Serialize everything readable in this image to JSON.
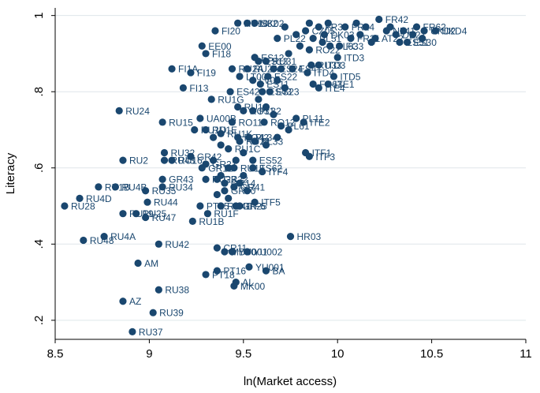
{
  "chart_data": {
    "type": "scatter",
    "xlabel": "ln(Market access)",
    "ylabel": "Literacy",
    "xlim": [
      8.5,
      11
    ],
    "ylim": [
      0.15,
      1.02
    ],
    "x_ticks": [
      8.5,
      9,
      9.5,
      10,
      10.5,
      11
    ],
    "x_tick_labels": [
      "8.5",
      "9",
      "9.5",
      "10",
      "10.5",
      "11"
    ],
    "y_ticks": [
      0.2,
      0.4,
      0.6,
      0.8,
      1.0
    ],
    "y_tick_labels": [
      ".2",
      ".4",
      ".6",
      ".8",
      "1"
    ],
    "grid": true,
    "marker_color": "#1a476f",
    "points": [
      {
        "x": 10.22,
        "y": 0.99,
        "label": "FR42"
      },
      {
        "x": 10.46,
        "y": 0.96,
        "label": "UKD2"
      },
      {
        "x": 10.52,
        "y": 0.96,
        "label": "UKD4"
      },
      {
        "x": 10.37,
        "y": 0.93,
        "label": "ES30"
      },
      {
        "x": 10.42,
        "y": 0.97,
        "label": "FR62"
      },
      {
        "x": 10.04,
        "y": 0.97,
        "label": "FR24"
      },
      {
        "x": 10.07,
        "y": 0.94,
        "label": "FR21"
      },
      {
        "x": 9.96,
        "y": 0.92,
        "label": "PL63"
      },
      {
        "x": 10.01,
        "y": 0.92,
        "label": "FC3"
      },
      {
        "x": 10.2,
        "y": 0.94,
        "label": "AT22"
      },
      {
        "x": 10.31,
        "y": 0.95,
        "label": "DE21"
      },
      {
        "x": 10.33,
        "y": 0.93,
        "label": "ES51"
      },
      {
        "x": 10.26,
        "y": 0.96,
        "label": "NL41"
      },
      {
        "x": 9.9,
        "y": 0.97,
        "label": "FR30"
      },
      {
        "x": 9.87,
        "y": 0.94,
        "label": "PL51"
      },
      {
        "x": 9.83,
        "y": 0.96,
        "label": "CZ05"
      },
      {
        "x": 9.93,
        "y": 0.95,
        "label": "DK03"
      },
      {
        "x": 9.47,
        "y": 0.98,
        "label": "HU10"
      },
      {
        "x": 9.56,
        "y": 0.98,
        "label": "SK02"
      },
      {
        "x": 9.52,
        "y": 0.98,
        "label": "HU32"
      },
      {
        "x": 9.68,
        "y": 0.94,
        "label": "PL22"
      },
      {
        "x": 9.85,
        "y": 0.91,
        "label": "RO22"
      },
      {
        "x": 9.9,
        "y": 0.87,
        "label": "ITD3"
      },
      {
        "x": 9.86,
        "y": 0.87,
        "label": "RU33"
      },
      {
        "x": 9.84,
        "y": 0.85,
        "label": "ITD4"
      },
      {
        "x": 9.76,
        "y": 0.86,
        "label": "ES41"
      },
      {
        "x": 10.0,
        "y": 0.89,
        "label": "ITD3"
      },
      {
        "x": 9.98,
        "y": 0.84,
        "label": "ITD5"
      },
      {
        "x": 9.95,
        "y": 0.82,
        "label": "ITE1"
      },
      {
        "x": 9.87,
        "y": 0.82,
        "label": "FR63"
      },
      {
        "x": 9.9,
        "y": 0.81,
        "label": "ITE4"
      },
      {
        "x": 9.56,
        "y": 0.89,
        "label": "ES12"
      },
      {
        "x": 9.58,
        "y": 0.88,
        "label": "ES13"
      },
      {
        "x": 9.62,
        "y": 0.88,
        "label": "RU31"
      },
      {
        "x": 9.66,
        "y": 0.86,
        "label": "ES24"
      },
      {
        "x": 9.63,
        "y": 0.84,
        "label": "ES22"
      },
      {
        "x": 9.55,
        "y": 0.83,
        "label": "LV00"
      },
      {
        "x": 9.59,
        "y": 0.82,
        "label": "ES11"
      },
      {
        "x": 9.6,
        "y": 0.8,
        "label": "ES43"
      },
      {
        "x": 9.64,
        "y": 0.8,
        "label": "ES23"
      },
      {
        "x": 9.52,
        "y": 0.86,
        "label": "RU2A"
      },
      {
        "x": 9.44,
        "y": 0.86,
        "label": "RU2A"
      },
      {
        "x": 9.48,
        "y": 0.84,
        "label": "LT00"
      },
      {
        "x": 9.35,
        "y": 0.96,
        "label": "FI20"
      },
      {
        "x": 9.28,
        "y": 0.92,
        "label": "EE00"
      },
      {
        "x": 9.3,
        "y": 0.9,
        "label": "FI18"
      },
      {
        "x": 9.12,
        "y": 0.86,
        "label": "FI1A"
      },
      {
        "x": 9.22,
        "y": 0.85,
        "label": "FI19"
      },
      {
        "x": 9.18,
        "y": 0.81,
        "label": "FI13"
      },
      {
        "x": 9.43,
        "y": 0.8,
        "label": "ES42"
      },
      {
        "x": 9.33,
        "y": 0.78,
        "label": "RU1G"
      },
      {
        "x": 9.47,
        "y": 0.76,
        "label": "RU1A"
      },
      {
        "x": 9.5,
        "y": 0.75,
        "label": "RO31"
      },
      {
        "x": 9.55,
        "y": 0.75,
        "label": "PL32"
      },
      {
        "x": 9.27,
        "y": 0.73,
        "label": "UA00B"
      },
      {
        "x": 9.07,
        "y": 0.72,
        "label": "RU15"
      },
      {
        "x": 9.44,
        "y": 0.72,
        "label": "RO11"
      },
      {
        "x": 9.61,
        "y": 0.72,
        "label": "RO12"
      },
      {
        "x": 9.78,
        "y": 0.73,
        "label": "PL11"
      },
      {
        "x": 9.82,
        "y": 0.72,
        "label": "ITE2"
      },
      {
        "x": 9.7,
        "y": 0.71,
        "label": "PL61"
      },
      {
        "x": 9.3,
        "y": 0.7,
        "label": "RU1E"
      },
      {
        "x": 9.24,
        "y": 0.7,
        "label": "RU1D"
      },
      {
        "x": 9.38,
        "y": 0.69,
        "label": "RU1K"
      },
      {
        "x": 9.47,
        "y": 0.68,
        "label": "RO42"
      },
      {
        "x": 9.53,
        "y": 0.68,
        "label": "PL34"
      },
      {
        "x": 9.48,
        "y": 0.67,
        "label": "RU21"
      },
      {
        "x": 9.56,
        "y": 0.67,
        "label": "PL33"
      },
      {
        "x": 9.42,
        "y": 0.65,
        "label": "RU1C"
      },
      {
        "x": 9.83,
        "y": 0.64,
        "label": "ITF1"
      },
      {
        "x": 9.85,
        "y": 0.63,
        "label": "ITF3"
      },
      {
        "x": 8.84,
        "y": 0.75,
        "label": "RU24"
      },
      {
        "x": 9.08,
        "y": 0.64,
        "label": "RU32"
      },
      {
        "x": 9.22,
        "y": 0.63,
        "label": "GR42"
      },
      {
        "x": 8.86,
        "y": 0.62,
        "label": "RU2"
      },
      {
        "x": 9.08,
        "y": 0.62,
        "label": "RU43"
      },
      {
        "x": 9.12,
        "y": 0.62,
        "label": "RU16"
      },
      {
        "x": 9.3,
        "y": 0.61,
        "label": "GR21"
      },
      {
        "x": 9.45,
        "y": 0.6,
        "label": "RU1J"
      },
      {
        "x": 9.55,
        "y": 0.62,
        "label": "ES52"
      },
      {
        "x": 9.55,
        "y": 0.6,
        "label": "ES62"
      },
      {
        "x": 9.6,
        "y": 0.59,
        "label": "ITF4"
      },
      {
        "x": 9.28,
        "y": 0.6,
        "label": "GR12"
      },
      {
        "x": 9.3,
        "y": 0.57,
        "label": "RU23"
      },
      {
        "x": 9.07,
        "y": 0.57,
        "label": "GR43"
      },
      {
        "x": 9.07,
        "y": 0.55,
        "label": "RU34"
      },
      {
        "x": 9.36,
        "y": 0.57,
        "label": "GR22"
      },
      {
        "x": 9.4,
        "y": 0.56,
        "label": "GR14"
      },
      {
        "x": 9.45,
        "y": 0.55,
        "label": "GR41"
      },
      {
        "x": 9.4,
        "y": 0.54,
        "label": "GR30"
      },
      {
        "x": 8.98,
        "y": 0.54,
        "label": "RU35"
      },
      {
        "x": 8.73,
        "y": 0.55,
        "label": "RU1B"
      },
      {
        "x": 8.82,
        "y": 0.55,
        "label": "RU4B"
      },
      {
        "x": 8.63,
        "y": 0.52,
        "label": "RU4D"
      },
      {
        "x": 8.55,
        "y": 0.5,
        "label": "RU28"
      },
      {
        "x": 8.99,
        "y": 0.51,
        "label": "RU44"
      },
      {
        "x": 9.27,
        "y": 0.5,
        "label": "PT15"
      },
      {
        "x": 9.38,
        "y": 0.5,
        "label": "RU41"
      },
      {
        "x": 9.46,
        "y": 0.5,
        "label": "GR25"
      },
      {
        "x": 9.56,
        "y": 0.51,
        "label": "ITF5"
      },
      {
        "x": 9.48,
        "y": 0.5,
        "label": "ITF6"
      },
      {
        "x": 8.86,
        "y": 0.48,
        "label": "RU19"
      },
      {
        "x": 8.93,
        "y": 0.48,
        "label": "RU25"
      },
      {
        "x": 8.98,
        "y": 0.47,
        "label": "RU47"
      },
      {
        "x": 9.31,
        "y": 0.48,
        "label": "RU1F"
      },
      {
        "x": 9.23,
        "y": 0.46,
        "label": "RU1B"
      },
      {
        "x": 8.76,
        "y": 0.42,
        "label": "RU4A"
      },
      {
        "x": 8.65,
        "y": 0.41,
        "label": "RU48"
      },
      {
        "x": 9.75,
        "y": 0.42,
        "label": "HR03"
      },
      {
        "x": 9.05,
        "y": 0.4,
        "label": "RU42"
      },
      {
        "x": 9.36,
        "y": 0.39,
        "label": "CR11"
      },
      {
        "x": 9.4,
        "y": 0.38,
        "label": "MD00"
      },
      {
        "x": 9.44,
        "y": 0.38,
        "label": "YU001"
      },
      {
        "x": 9.52,
        "y": 0.38,
        "label": "YU002"
      },
      {
        "x": 8.94,
        "y": 0.35,
        "label": "AM"
      },
      {
        "x": 9.53,
        "y": 0.34,
        "label": "YU001"
      },
      {
        "x": 9.36,
        "y": 0.33,
        "label": "PT16"
      },
      {
        "x": 9.3,
        "y": 0.32,
        "label": "PT18"
      },
      {
        "x": 9.62,
        "y": 0.33,
        "label": "BA"
      },
      {
        "x": 9.46,
        "y": 0.3,
        "label": "AL"
      },
      {
        "x": 9.45,
        "y": 0.29,
        "label": "MK00"
      },
      {
        "x": 9.05,
        "y": 0.28,
        "label": "RU38"
      },
      {
        "x": 8.86,
        "y": 0.25,
        "label": "AZ"
      },
      {
        "x": 9.02,
        "y": 0.22,
        "label": "RU39"
      },
      {
        "x": 8.91,
        "y": 0.17,
        "label": "RU37"
      },
      {
        "x": 9.85,
        "y": 0.98,
        "label": ""
      },
      {
        "x": 9.95,
        "y": 0.98,
        "label": ""
      },
      {
        "x": 10.1,
        "y": 0.98,
        "label": ""
      },
      {
        "x": 10.15,
        "y": 0.97,
        "label": ""
      },
      {
        "x": 10.28,
        "y": 0.97,
        "label": ""
      },
      {
        "x": 10.35,
        "y": 0.96,
        "label": ""
      },
      {
        "x": 10.4,
        "y": 0.95,
        "label": ""
      },
      {
        "x": 10.45,
        "y": 0.94,
        "label": ""
      },
      {
        "x": 10.12,
        "y": 0.95,
        "label": ""
      },
      {
        "x": 10.18,
        "y": 0.93,
        "label": ""
      },
      {
        "x": 9.92,
        "y": 0.93,
        "label": ""
      },
      {
        "x": 9.78,
        "y": 0.95,
        "label": ""
      },
      {
        "x": 9.72,
        "y": 0.97,
        "label": ""
      },
      {
        "x": 9.8,
        "y": 0.92,
        "label": ""
      },
      {
        "x": 9.74,
        "y": 0.9,
        "label": ""
      },
      {
        "x": 9.7,
        "y": 0.86,
        "label": ""
      },
      {
        "x": 9.68,
        "y": 0.83,
        "label": ""
      },
      {
        "x": 9.72,
        "y": 0.81,
        "label": ""
      },
      {
        "x": 9.58,
        "y": 0.78,
        "label": ""
      },
      {
        "x": 9.62,
        "y": 0.76,
        "label": ""
      },
      {
        "x": 9.66,
        "y": 0.74,
        "label": ""
      },
      {
        "x": 9.74,
        "y": 0.7,
        "label": ""
      },
      {
        "x": 9.68,
        "y": 0.68,
        "label": ""
      },
      {
        "x": 9.62,
        "y": 0.66,
        "label": ""
      },
      {
        "x": 9.5,
        "y": 0.64,
        "label": ""
      },
      {
        "x": 9.46,
        "y": 0.62,
        "label": ""
      },
      {
        "x": 9.42,
        "y": 0.6,
        "label": ""
      },
      {
        "x": 9.5,
        "y": 0.58,
        "label": ""
      },
      {
        "x": 9.38,
        "y": 0.58,
        "label": ""
      },
      {
        "x": 9.48,
        "y": 0.56,
        "label": ""
      },
      {
        "x": 9.52,
        "y": 0.54,
        "label": ""
      },
      {
        "x": 9.42,
        "y": 0.52,
        "label": ""
      },
      {
        "x": 9.36,
        "y": 0.53,
        "label": ""
      },
      {
        "x": 9.34,
        "y": 0.62,
        "label": ""
      },
      {
        "x": 9.38,
        "y": 0.66,
        "label": ""
      },
      {
        "x": 9.34,
        "y": 0.68,
        "label": ""
      }
    ]
  }
}
